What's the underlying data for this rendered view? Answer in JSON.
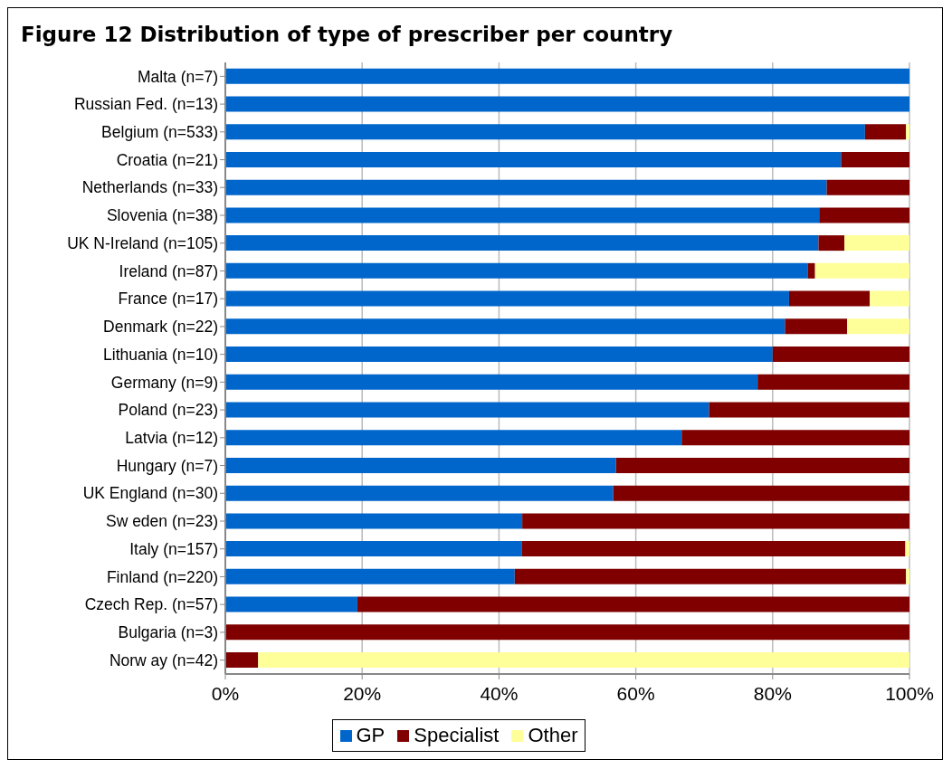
{
  "chart_data": {
    "type": "bar",
    "orientation": "horizontal",
    "stacked": true,
    "title": "Figure 12 Distribution of type of prescriber per country",
    "categories": [
      "Malta (n=7)",
      "Russian Fed. (n=13)",
      "Belgium (n=533)",
      "Croatia (n=21)",
      "Netherlands (n=33)",
      "Slovenia (n=38)",
      "UK N-Ireland (n=105)",
      "Ireland (n=87)",
      "France (n=17)",
      "Denmark (n=22)",
      "Lithuania (n=10)",
      "Germany (n=9)",
      "Poland (n=23)",
      "Latvia (n=12)",
      "Hungary (n=7)",
      "UK England (n=30)",
      "Sw eden (n=23)",
      "Italy (n=157)",
      "Finland (n=220)",
      "Czech Rep. (n=57)",
      "Bulgaria (n=3)",
      "Norw ay (n=42)"
    ],
    "series": [
      {
        "name": "GP",
        "color": "#0066cc",
        "values": [
          100,
          100,
          93.5,
          90,
          87.9,
          86.8,
          86.7,
          85.1,
          82.4,
          81.8,
          80,
          77.8,
          70.7,
          66.7,
          57.1,
          56.7,
          43.4,
          43.3,
          42.3,
          19.3,
          0,
          0
        ]
      },
      {
        "name": "Specialist",
        "color": "#800000",
        "values": [
          0,
          0,
          6,
          10,
          12.1,
          13.2,
          3.8,
          1.1,
          11.8,
          9.1,
          20,
          22.2,
          29.3,
          33.3,
          42.9,
          43.3,
          56.6,
          56.1,
          57.2,
          80.7,
          100,
          4.8
        ]
      },
      {
        "name": "Other",
        "color": "#ffff99",
        "values": [
          0,
          0,
          0.5,
          0,
          0,
          0,
          9.5,
          13.8,
          5.9,
          9.1,
          0,
          0,
          0,
          0,
          0,
          0,
          0,
          0.6,
          0.5,
          0,
          0,
          95.2
        ]
      }
    ],
    "xlim": [
      0,
      100
    ],
    "xticks": [
      {
        "value": 0,
        "label": "0%"
      },
      {
        "value": 20,
        "label": "20%"
      },
      {
        "value": 40,
        "label": "40%"
      },
      {
        "value": 60,
        "label": "60%"
      },
      {
        "value": 80,
        "label": "80%"
      },
      {
        "value": 100,
        "label": "100%"
      }
    ],
    "grid": "x",
    "legend": "bottom"
  }
}
